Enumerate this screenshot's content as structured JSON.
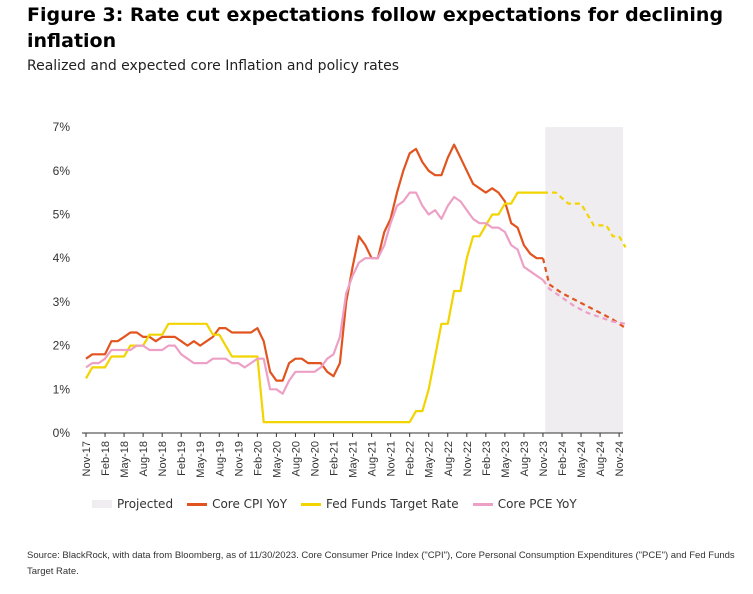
{
  "title": "Figure 3: Rate cut expectations follow expectations for declining inflation",
  "subtitle": "Realized and expected core Inflation and policy rates",
  "source": "Source: BlackRock, with data from Bloomberg, as of 11/30/2023. Core Consumer Price Index (\"CPI\"), Core Personal Consumption Expenditures (\"PCE\") and Fed Funds Target Rate.",
  "colors": {
    "cpi": "#e2541f",
    "fed": "#f2d400",
    "pce": "#eda0c5",
    "projected": "#efedf0",
    "axis": "#333333"
  },
  "legend": {
    "projected": "Projected",
    "cpi": "Core CPI YoY",
    "fed": "Fed Funds Target Rate",
    "pce": "Core PCE YoY"
  },
  "chart_data": {
    "type": "line",
    "ylim": [
      0,
      7
    ],
    "yticks": [
      "0%",
      "1%",
      "2%",
      "3%",
      "4%",
      "5%",
      "6%",
      "7%"
    ],
    "xticks": [
      "Nov-17",
      "Feb-18",
      "May-18",
      "Aug-18",
      "Nov-18",
      "Feb-19",
      "May-19",
      "Aug-19",
      "Nov-19",
      "Feb-20",
      "May-20",
      "Aug-20",
      "Nov-20",
      "Feb-21",
      "May-21",
      "Aug-21",
      "Nov-21",
      "Feb-22",
      "May-22",
      "Aug-22",
      "Nov-22",
      "Feb-23",
      "May-23",
      "Aug-23",
      "Nov-23",
      "Feb-24",
      "May-24",
      "Aug-24",
      "Nov-24"
    ],
    "projected_range": [
      "Dec-23",
      "Dec-24"
    ],
    "series": [
      {
        "name": "Core CPI YoY",
        "color": "#e2541f",
        "actual": [
          [
            "Nov-17",
            1.7
          ],
          [
            "Dec-17",
            1.8
          ],
          [
            "Jan-18",
            1.8
          ],
          [
            "Feb-18",
            1.8
          ],
          [
            "Mar-18",
            2.1
          ],
          [
            "Apr-18",
            2.1
          ],
          [
            "May-18",
            2.2
          ],
          [
            "Jun-18",
            2.3
          ],
          [
            "Jul-18",
            2.3
          ],
          [
            "Aug-18",
            2.2
          ],
          [
            "Sep-18",
            2.2
          ],
          [
            "Oct-18",
            2.1
          ],
          [
            "Nov-18",
            2.2
          ],
          [
            "Dec-18",
            2.2
          ],
          [
            "Jan-19",
            2.2
          ],
          [
            "Feb-19",
            2.1
          ],
          [
            "Mar-19",
            2.0
          ],
          [
            "Apr-19",
            2.1
          ],
          [
            "May-19",
            2.0
          ],
          [
            "Jun-19",
            2.1
          ],
          [
            "Jul-19",
            2.2
          ],
          [
            "Aug-19",
            2.4
          ],
          [
            "Sep-19",
            2.4
          ],
          [
            "Oct-19",
            2.3
          ],
          [
            "Nov-19",
            2.3
          ],
          [
            "Dec-19",
            2.3
          ],
          [
            "Jan-20",
            2.3
          ],
          [
            "Feb-20",
            2.4
          ],
          [
            "Mar-20",
            2.1
          ],
          [
            "Apr-20",
            1.4
          ],
          [
            "May-20",
            1.2
          ],
          [
            "Jun-20",
            1.2
          ],
          [
            "Jul-20",
            1.6
          ],
          [
            "Aug-20",
            1.7
          ],
          [
            "Sep-20",
            1.7
          ],
          [
            "Oct-20",
            1.6
          ],
          [
            "Nov-20",
            1.6
          ],
          [
            "Dec-20",
            1.6
          ],
          [
            "Jan-21",
            1.4
          ],
          [
            "Feb-21",
            1.3
          ],
          [
            "Mar-21",
            1.6
          ],
          [
            "Apr-21",
            3.0
          ],
          [
            "May-21",
            3.8
          ],
          [
            "Jun-21",
            4.5
          ],
          [
            "Jul-21",
            4.3
          ],
          [
            "Aug-21",
            4.0
          ],
          [
            "Sep-21",
            4.0
          ],
          [
            "Oct-21",
            4.6
          ],
          [
            "Nov-21",
            4.9
          ],
          [
            "Dec-21",
            5.5
          ],
          [
            "Jan-22",
            6.0
          ],
          [
            "Feb-22",
            6.4
          ],
          [
            "Mar-22",
            6.5
          ],
          [
            "Apr-22",
            6.2
          ],
          [
            "May-22",
            6.0
          ],
          [
            "Jun-22",
            5.9
          ],
          [
            "Jul-22",
            5.9
          ],
          [
            "Aug-22",
            6.3
          ],
          [
            "Sep-22",
            6.6
          ],
          [
            "Oct-22",
            6.3
          ],
          [
            "Nov-22",
            6.0
          ],
          [
            "Dec-22",
            5.7
          ],
          [
            "Jan-23",
            5.6
          ],
          [
            "Feb-23",
            5.5
          ],
          [
            "Mar-23",
            5.6
          ],
          [
            "Apr-23",
            5.5
          ],
          [
            "May-23",
            5.3
          ],
          [
            "Jun-23",
            4.8
          ],
          [
            "Jul-23",
            4.7
          ],
          [
            "Aug-23",
            4.3
          ],
          [
            "Sep-23",
            4.1
          ],
          [
            "Oct-23",
            4.0
          ],
          [
            "Nov-23",
            4.0
          ]
        ],
        "projected": [
          [
            "Nov-23",
            4.0
          ],
          [
            "Dec-23",
            3.4
          ],
          [
            "Feb-24",
            3.2
          ],
          [
            "Apr-24",
            3.05
          ],
          [
            "Jun-24",
            2.9
          ],
          [
            "Aug-24",
            2.75
          ],
          [
            "Oct-24",
            2.6
          ],
          [
            "Dec-24",
            2.4
          ]
        ]
      },
      {
        "name": "Fed Funds Target Rate",
        "color": "#f2d400",
        "actual": [
          [
            "Nov-17",
            1.25
          ],
          [
            "Dec-17",
            1.5
          ],
          [
            "Feb-18",
            1.5
          ],
          [
            "Mar-18",
            1.75
          ],
          [
            "May-18",
            1.75
          ],
          [
            "Jun-18",
            2.0
          ],
          [
            "Aug-18",
            2.0
          ],
          [
            "Sep-18",
            2.25
          ],
          [
            "Nov-18",
            2.25
          ],
          [
            "Dec-18",
            2.5
          ],
          [
            "Jun-19",
            2.5
          ],
          [
            "Jul-19",
            2.25
          ],
          [
            "Aug-19",
            2.25
          ],
          [
            "Sep-19",
            2.0
          ],
          [
            "Oct-19",
            1.75
          ],
          [
            "Feb-20",
            1.75
          ],
          [
            "Mar-20",
            0.25
          ],
          [
            "Feb-22",
            0.25
          ],
          [
            "Mar-22",
            0.5
          ],
          [
            "Apr-22",
            0.5
          ],
          [
            "May-22",
            1.0
          ],
          [
            "Jun-22",
            1.75
          ],
          [
            "Jul-22",
            2.5
          ],
          [
            "Aug-22",
            2.5
          ],
          [
            "Sep-22",
            3.25
          ],
          [
            "Oct-22",
            3.25
          ],
          [
            "Nov-22",
            4.0
          ],
          [
            "Dec-22",
            4.5
          ],
          [
            "Jan-23",
            4.5
          ],
          [
            "Feb-23",
            4.75
          ],
          [
            "Mar-23",
            5.0
          ],
          [
            "Apr-23",
            5.0
          ],
          [
            "May-23",
            5.25
          ],
          [
            "Jun-23",
            5.25
          ],
          [
            "Jul-23",
            5.5
          ],
          [
            "Nov-23",
            5.5
          ]
        ],
        "projected": [
          [
            "Nov-23",
            5.5
          ],
          [
            "Jan-24",
            5.5
          ],
          [
            "Mar-24",
            5.25
          ],
          [
            "May-24",
            5.25
          ],
          [
            "Jun-24",
            5.0
          ],
          [
            "Jul-24",
            4.75
          ],
          [
            "Sep-24",
            4.75
          ],
          [
            "Oct-24",
            4.5
          ],
          [
            "Nov-24",
            4.5
          ],
          [
            "Dec-24",
            4.25
          ]
        ]
      },
      {
        "name": "Core PCE YoY",
        "color": "#eda0c5",
        "actual": [
          [
            "Nov-17",
            1.5
          ],
          [
            "Dec-17",
            1.6
          ],
          [
            "Jan-18",
            1.6
          ],
          [
            "Feb-18",
            1.7
          ],
          [
            "Mar-18",
            1.9
          ],
          [
            "Apr-18",
            1.9
          ],
          [
            "May-18",
            1.9
          ],
          [
            "Jun-18",
            1.9
          ],
          [
            "Jul-18",
            2.0
          ],
          [
            "Aug-18",
            2.0
          ],
          [
            "Sep-18",
            1.9
          ],
          [
            "Oct-18",
            1.9
          ],
          [
            "Nov-18",
            1.9
          ],
          [
            "Dec-18",
            2.0
          ],
          [
            "Jan-19",
            2.0
          ],
          [
            "Feb-19",
            1.8
          ],
          [
            "Mar-19",
            1.7
          ],
          [
            "Apr-19",
            1.6
          ],
          [
            "May-19",
            1.6
          ],
          [
            "Jun-19",
            1.6
          ],
          [
            "Jul-19",
            1.7
          ],
          [
            "Aug-19",
            1.7
          ],
          [
            "Sep-19",
            1.7
          ],
          [
            "Oct-19",
            1.6
          ],
          [
            "Nov-19",
            1.6
          ],
          [
            "Dec-19",
            1.5
          ],
          [
            "Jan-20",
            1.6
          ],
          [
            "Feb-20",
            1.7
          ],
          [
            "Mar-20",
            1.7
          ],
          [
            "Apr-20",
            1.0
          ],
          [
            "May-20",
            1.0
          ],
          [
            "Jun-20",
            0.9
          ],
          [
            "Jul-20",
            1.2
          ],
          [
            "Aug-20",
            1.4
          ],
          [
            "Sep-20",
            1.4
          ],
          [
            "Oct-20",
            1.4
          ],
          [
            "Nov-20",
            1.4
          ],
          [
            "Dec-20",
            1.5
          ],
          [
            "Jan-21",
            1.7
          ],
          [
            "Feb-21",
            1.8
          ],
          [
            "Mar-21",
            2.2
          ],
          [
            "Apr-21",
            3.2
          ],
          [
            "May-21",
            3.6
          ],
          [
            "Jun-21",
            3.9
          ],
          [
            "Jul-21",
            4.0
          ],
          [
            "Aug-21",
            4.0
          ],
          [
            "Sep-21",
            4.0
          ],
          [
            "Oct-21",
            4.3
          ],
          [
            "Nov-21",
            4.8
          ],
          [
            "Dec-21",
            5.2
          ],
          [
            "Jan-22",
            5.3
          ],
          [
            "Feb-22",
            5.5
          ],
          [
            "Mar-22",
            5.5
          ],
          [
            "Apr-22",
            5.2
          ],
          [
            "May-22",
            5.0
          ],
          [
            "Jun-22",
            5.1
          ],
          [
            "Jul-22",
            4.9
          ],
          [
            "Aug-22",
            5.2
          ],
          [
            "Sep-22",
            5.4
          ],
          [
            "Oct-22",
            5.3
          ],
          [
            "Nov-22",
            5.1
          ],
          [
            "Dec-22",
            4.9
          ],
          [
            "Jan-23",
            4.8
          ],
          [
            "Feb-23",
            4.8
          ],
          [
            "Mar-23",
            4.7
          ],
          [
            "Apr-23",
            4.7
          ],
          [
            "May-23",
            4.6
          ],
          [
            "Jun-23",
            4.3
          ],
          [
            "Jul-23",
            4.2
          ],
          [
            "Aug-23",
            3.8
          ],
          [
            "Sep-23",
            3.7
          ],
          [
            "Oct-23",
            3.6
          ],
          [
            "Nov-23",
            3.5
          ]
        ],
        "projected": [
          [
            "Nov-23",
            3.5
          ],
          [
            "Dec-23",
            3.3
          ],
          [
            "Feb-24",
            3.1
          ],
          [
            "Apr-24",
            2.9
          ],
          [
            "Jun-24",
            2.75
          ],
          [
            "Aug-24",
            2.65
          ],
          [
            "Oct-24",
            2.55
          ],
          [
            "Dec-24",
            2.5
          ]
        ]
      }
    ]
  }
}
